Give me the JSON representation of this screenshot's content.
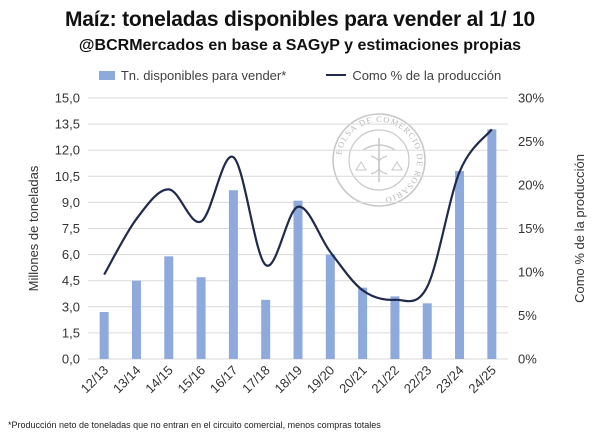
{
  "header": {
    "title": "Maíz: toneladas disponibles para vender al 1/ 10",
    "subtitle": "@BCRMercados en base a SAGyP y estimaciones propias"
  },
  "colors": {
    "bar": "#8EA9DB",
    "line": "#1F2A4D",
    "grid": "#d9d9d9"
  },
  "watermark": {
    "text": "BOLSA DE COMERCIO DE ROSARIO"
  },
  "footnote": "*Producción neto de toneladas que no entran en el circuito comercial, menos compras totales",
  "chart_data": {
    "type": "bar",
    "categories": [
      "12/13",
      "13/14",
      "14/15",
      "15/16",
      "16/17",
      "17/18",
      "18/19",
      "19/20",
      "20/21",
      "21/22",
      "22/23",
      "23/24",
      "24/25"
    ],
    "series": [
      {
        "name": "Tn. disponibles para vender*",
        "type": "bar",
        "axis": "left",
        "values": [
          2.7,
          4.5,
          5.9,
          4.7,
          9.7,
          3.4,
          9.1,
          6.0,
          4.1,
          3.6,
          3.2,
          10.8,
          13.2
        ]
      },
      {
        "name": "Como % de la producción",
        "type": "line",
        "axis": "right",
        "values": [
          9.7,
          16.1,
          19.5,
          15.8,
          23.2,
          10.8,
          17.5,
          12.3,
          7.9,
          6.8,
          8.3,
          21.5,
          26.4
        ]
      }
    ],
    "ylabel": "Millones de toneladas",
    "ylim": [
      0,
      15
    ],
    "yticks": [
      "0,0",
      "1,5",
      "3,0",
      "4,5",
      "6,0",
      "7,5",
      "9,0",
      "10,5",
      "12,0",
      "13,5",
      "15,0"
    ],
    "y2label": "Como % de la producción",
    "y2lim": [
      0,
      30
    ],
    "y2ticks": [
      "0%",
      "5%",
      "10%",
      "15%",
      "20%",
      "25%",
      "30%"
    ],
    "grid": true,
    "legend": "top-center"
  }
}
